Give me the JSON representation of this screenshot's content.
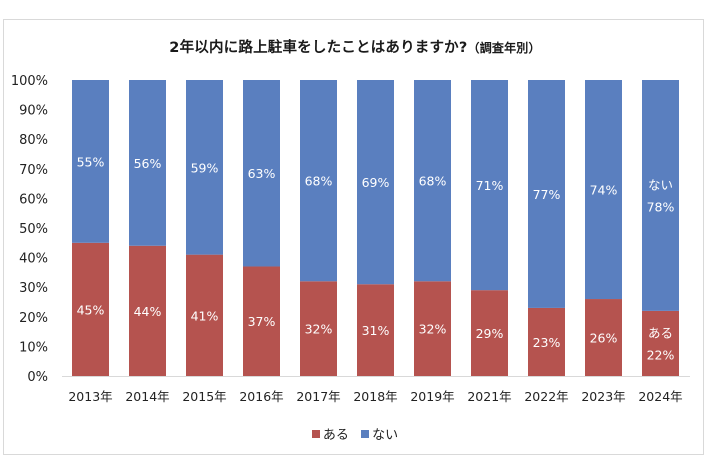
{
  "chart_data": {
    "type": "bar",
    "stacked": true,
    "title": "2年以内に路上駐車をしたことはありますか?",
    "subtitle": "（調査年別）",
    "xlabel": "",
    "ylabel": "",
    "ylim": [
      0,
      100
    ],
    "yticks": [
      "0%",
      "10%",
      "20%",
      "30%",
      "40%",
      "50%",
      "60%",
      "70%",
      "80%",
      "90%",
      "100%"
    ],
    "grid": false,
    "legend_position": "bottom",
    "categories": [
      "2013年",
      "2014年",
      "2015年",
      "2016年",
      "2017年",
      "2018年",
      "2019年",
      "2021年",
      "2022年",
      "2023年",
      "2024年"
    ],
    "series": [
      {
        "name": "ある",
        "color": "#b5534f",
        "values": [
          45,
          44,
          41,
          37,
          32,
          31,
          32,
          29,
          23,
          26,
          22
        ]
      },
      {
        "name": "ない",
        "color": "#5a7fbf",
        "values": [
          55,
          56,
          59,
          63,
          68,
          69,
          68,
          71,
          77,
          74,
          78
        ]
      }
    ],
    "inline_series_labels_on_category": "2024年"
  }
}
